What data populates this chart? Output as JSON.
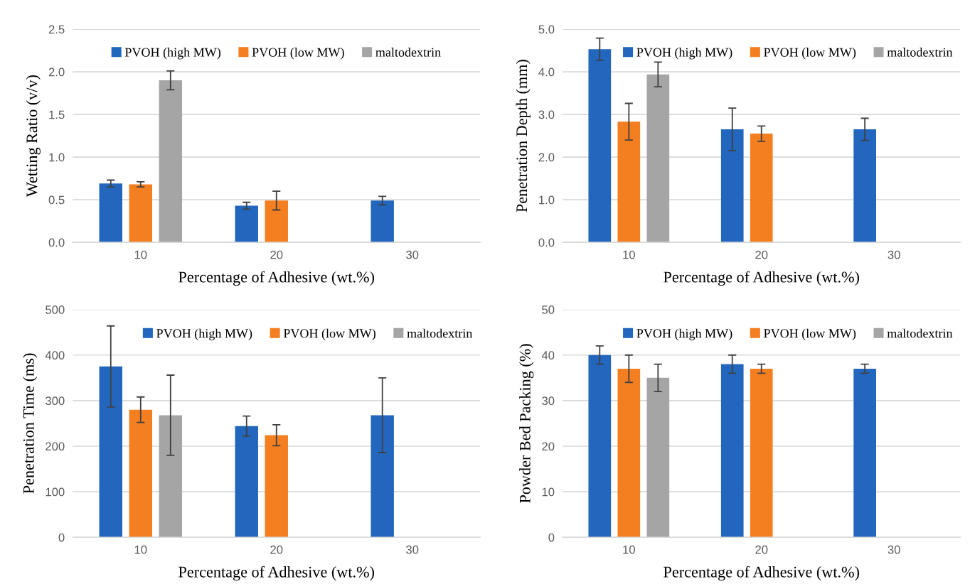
{
  "chart_data": [
    {
      "type": "bar",
      "xlabel": "Percentage of Adhesive (wt.%)",
      "ylabel": "Wetting Ratio (v/v)",
      "categories": [
        "10",
        "20",
        "30"
      ],
      "ylim": [
        0,
        2.5
      ],
      "yticks": [
        {
          "value": 0,
          "label": "0.0"
        },
        {
          "value": 0.5,
          "label": "0.5"
        },
        {
          "value": 1,
          "label": "1.0"
        },
        {
          "value": 1.5,
          "label": "1.5"
        },
        {
          "value": 2,
          "label": "2.0"
        },
        {
          "value": 2.5,
          "label": "2.5"
        }
      ],
      "grid": "y",
      "legend": "top",
      "series": [
        {
          "name": "PVOH (high MW)",
          "color": "#2266bd",
          "values": [
            0.69,
            0.43,
            0.49
          ],
          "errors": [
            0.04,
            0.04,
            0.05
          ]
        },
        {
          "name": "PVOH (low MW)",
          "color": "#f47f20",
          "values": [
            0.68,
            0.49,
            null
          ],
          "errors": [
            0.03,
            0.11,
            null
          ]
        },
        {
          "name": "maltodextrin",
          "color": "#a5a5a5",
          "values": [
            1.9,
            null,
            null
          ],
          "errors": [
            0.11,
            null,
            null
          ]
        }
      ]
    },
    {
      "type": "bar",
      "xlabel": "Percentage of Adhesive (wt.%)",
      "ylabel": "Penetration Depth (mm)",
      "categories": [
        "10",
        "20",
        "30"
      ],
      "ylim": [
        0,
        5
      ],
      "yticks": [
        {
          "value": 0,
          "label": "0.0"
        },
        {
          "value": 1,
          "label": "1.0"
        },
        {
          "value": 2,
          "label": "2.0"
        },
        {
          "value": 3,
          "label": "3.0"
        },
        {
          "value": 4,
          "label": "4.0"
        },
        {
          "value": 5,
          "label": "5.0"
        }
      ],
      "grid": "y",
      "legend": "top right",
      "series": [
        {
          "name": "PVOH (high MW)",
          "color": "#2266bd",
          "values": [
            4.53,
            2.65,
            2.65
          ],
          "errors": [
            0.26,
            0.5,
            0.26
          ]
        },
        {
          "name": "PVOH (low MW)",
          "color": "#f47f20",
          "values": [
            2.83,
            2.55,
            null
          ],
          "errors": [
            0.43,
            0.18,
            null
          ]
        },
        {
          "name": "maltodextrin",
          "color": "#a5a5a5",
          "values": [
            3.94,
            null,
            null
          ],
          "errors": [
            0.29,
            null,
            null
          ]
        }
      ]
    },
    {
      "type": "bar",
      "xlabel": "Percentage of Adhesive (wt.%)",
      "ylabel": "Penetration Time (ms)",
      "categories": [
        "10",
        "20",
        "30"
      ],
      "ylim": [
        0,
        500
      ],
      "yticks": [
        0,
        100,
        200,
        300,
        400,
        500
      ],
      "grid": "y",
      "legend": "top right",
      "series": [
        {
          "name": "PVOH (high MW)",
          "color": "#2266bd",
          "values": [
            375,
            244,
            268
          ],
          "errors": [
            89,
            22,
            82
          ]
        },
        {
          "name": "PVOH (low MW)",
          "color": "#f47f20",
          "values": [
            280,
            224,
            null
          ],
          "errors": [
            28,
            23,
            null
          ]
        },
        {
          "name": "maltodextrin",
          "color": "#a5a5a5",
          "values": [
            268,
            null,
            null
          ],
          "errors": [
            88,
            null,
            null
          ]
        }
      ]
    },
    {
      "type": "bar",
      "xlabel": "Percentage of Adhesive (wt.%)",
      "ylabel": "Powder Bed Packing (%)",
      "categories": [
        "10",
        "20",
        "30"
      ],
      "ylim": [
        0,
        50
      ],
      "yticks": [
        0,
        10,
        20,
        30,
        40,
        50
      ],
      "grid": "y",
      "legend": "top right",
      "series": [
        {
          "name": "PVOH (high MW)",
          "color": "#2266bd",
          "values": [
            40,
            38,
            37
          ],
          "errors": [
            2,
            2,
            1
          ]
        },
        {
          "name": "PVOH (low MW)",
          "color": "#f47f20",
          "values": [
            37,
            37,
            null
          ],
          "errors": [
            3,
            1,
            null
          ]
        },
        {
          "name": "maltodextrin",
          "color": "#a5a5a5",
          "values": [
            35,
            null,
            null
          ],
          "errors": [
            3,
            null,
            null
          ]
        }
      ]
    }
  ]
}
